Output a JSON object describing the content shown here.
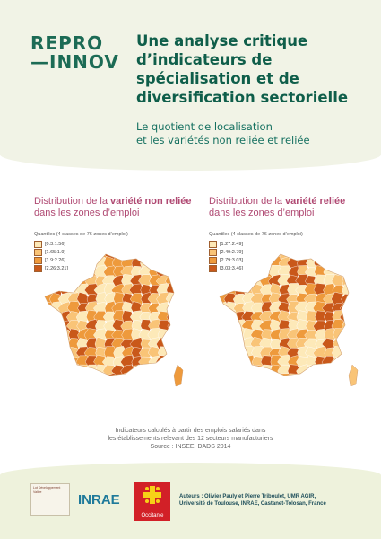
{
  "header": {
    "logo_line1": "REPRO",
    "logo_line2": "—INNOV",
    "title": "Une analyse critique d’indicateurs de spécialisation et de diversification sectorielle",
    "subtitle_line1": "Le quotient de localisation",
    "subtitle_line2": "et les variétés non reliée et reliée"
  },
  "panels": [
    {
      "title_pre": "Distribution de la ",
      "title_bold": "variété non reliée",
      "title_post": "dans les zones d’emploi",
      "quantiles_title": "Quantiles (4 classes de 76 zones d’emploi)",
      "legend": [
        {
          "label": "[0.3:1.56]",
          "color": "#fde9b8"
        },
        {
          "label": "[1.65:1.9]",
          "color": "#f9c477"
        },
        {
          "label": "[1.9:2.26]",
          "color": "#ee9a3c"
        },
        {
          "label": "[2.26:3.21]",
          "color": "#c9581a"
        }
      ]
    },
    {
      "title_pre": "Distribution de la ",
      "title_bold": "variété reliée",
      "title_post": "dans les zones d’emploi",
      "quantiles_title": "Quantiles (4 classes de 76 zones d’emploi)",
      "legend": [
        {
          "label": "[1.27:2.49]",
          "color": "#fde9b8"
        },
        {
          "label": "[2.49:2.79]",
          "color": "#f9c477"
        },
        {
          "label": "[2.79:3.03]",
          "color": "#ee9a3c"
        },
        {
          "label": "[3.03:3.46]",
          "color": "#c9581a"
        }
      ]
    }
  ],
  "source": {
    "line1": "Indicateurs calculés à partir des emplois salariés dans",
    "line2": "les établissements relevant des 12 secteurs manufacturiers",
    "line3": "Source : INSEE, DADS 2014"
  },
  "footer": {
    "ldv_text": "Lot Développement Vallée",
    "inrae": "INRAE",
    "occitanie": "Occitanie",
    "authors_line1": "Auteurs : Olivier Pauly et Pierre Triboulet, UMR AGIR,",
    "authors_line2": "Université de Toulouse, INRAE, Castanet-Tolosan, France"
  }
}
